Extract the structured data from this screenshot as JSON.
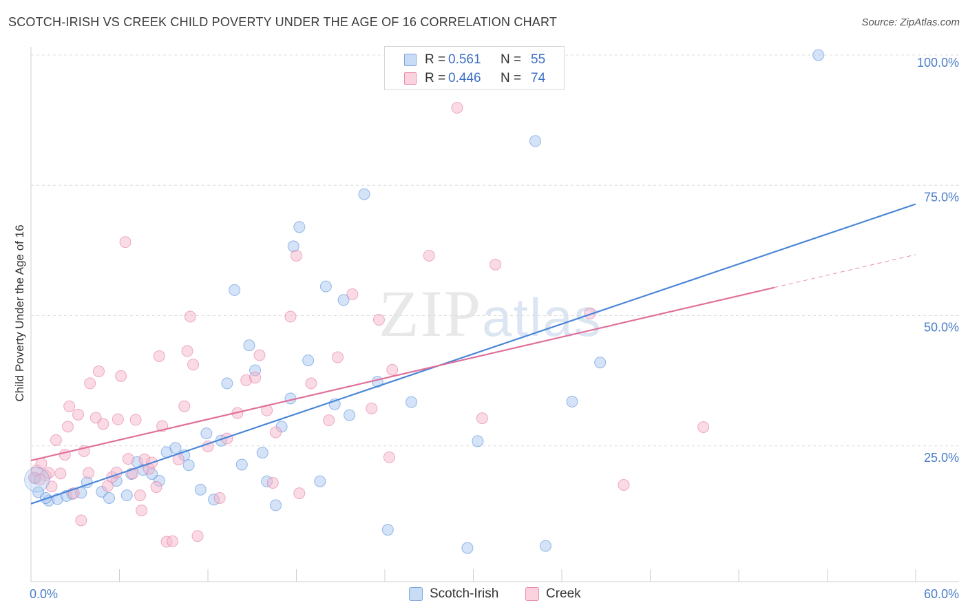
{
  "header": {
    "title": "SCOTCH-IRISH VS CREEK CHILD POVERTY UNDER THE AGE OF 16 CORRELATION CHART",
    "source": "Source: ZipAtlas.com"
  },
  "watermark": {
    "zip": "ZIP",
    "atlas": "atlas"
  },
  "legend": {
    "rows": [
      {
        "r_label": "R =",
        "r_value": "0.561",
        "n_label": "N =",
        "n_value": "55",
        "color": "#a9c8f0"
      },
      {
        "r_label": "R =",
        "r_value": "0.446",
        "n_label": "N =",
        "n_value": "74",
        "color": "#f6b8cb"
      }
    ]
  },
  "bottom_legend": [
    {
      "label": "Scotch-Irish",
      "color": "#a9c8f0"
    },
    {
      "label": "Creek",
      "color": "#f6b8cb"
    }
  ],
  "chart_data": {
    "type": "scatter",
    "title": "SCOTCH-IRISH VS CREEK CHILD POVERTY UNDER THE AGE OF 16 CORRELATION CHART",
    "ylabel": "Child Poverty Under the Age of 16",
    "xlabel": "",
    "xlim": [
      0,
      60
    ],
    "ylim": [
      0,
      100
    ],
    "x_tick_labels": [
      "0.0%",
      "60.0%"
    ],
    "y_ticks": [
      25,
      50,
      75,
      100
    ],
    "y_tick_labels": [
      "25.0%",
      "50.0%",
      "75.0%",
      "100.0%"
    ],
    "grid": true,
    "legend_position": "top-center",
    "series": [
      {
        "name": "Scotch-Irish",
        "color": "#4a86d8",
        "fill": "#a9c8f0",
        "trend": {
          "x": [
            0,
            60
          ],
          "y": [
            13.9,
            71.4
          ],
          "dashed_from": null
        },
        "points": [
          [
            0.3,
            18.8
          ],
          [
            0.5,
            16.1
          ],
          [
            1.2,
            14.5
          ],
          [
            1.8,
            14.8
          ],
          [
            2.4,
            15.4
          ],
          [
            2.8,
            15.8
          ],
          [
            3.4,
            16.0
          ],
          [
            3.8,
            18.0
          ],
          [
            4.8,
            16.2
          ],
          [
            5.3,
            15.0
          ],
          [
            5.8,
            18.3
          ],
          [
            6.5,
            15.5
          ],
          [
            6.8,
            19.6
          ],
          [
            7.2,
            21.9
          ],
          [
            7.6,
            20.4
          ],
          [
            8.2,
            19.6
          ],
          [
            8.7,
            18.3
          ],
          [
            9.2,
            23.8
          ],
          [
            9.8,
            24.6
          ],
          [
            10.4,
            23.2
          ],
          [
            10.7,
            21.3
          ],
          [
            11.5,
            16.6
          ],
          [
            11.9,
            27.4
          ],
          [
            12.4,
            14.7
          ],
          [
            12.9,
            26.0
          ],
          [
            13.3,
            37.0
          ],
          [
            13.8,
            54.9
          ],
          [
            14.3,
            21.4
          ],
          [
            14.8,
            44.3
          ],
          [
            15.2,
            39.5
          ],
          [
            15.7,
            23.7
          ],
          [
            16.0,
            18.2
          ],
          [
            16.6,
            13.6
          ],
          [
            17.0,
            28.7
          ],
          [
            17.6,
            34.1
          ],
          [
            17.8,
            63.3
          ],
          [
            18.2,
            67.0
          ],
          [
            18.8,
            41.4
          ],
          [
            19.6,
            18.2
          ],
          [
            20.0,
            55.6
          ],
          [
            20.6,
            33.0
          ],
          [
            21.2,
            53.0
          ],
          [
            21.6,
            30.9
          ],
          [
            22.6,
            73.3
          ],
          [
            23.5,
            37.3
          ],
          [
            24.2,
            8.9
          ],
          [
            25.8,
            33.4
          ],
          [
            29.6,
            5.4
          ],
          [
            30.3,
            25.9
          ],
          [
            34.2,
            83.5
          ],
          [
            34.9,
            5.8
          ],
          [
            36.7,
            33.5
          ],
          [
            38.6,
            41.0
          ],
          [
            53.4,
            100.0
          ],
          [
            1.0,
            15.0
          ]
        ]
      },
      {
        "name": "Creek",
        "color": "#e0709a",
        "fill": "#f6b8cb",
        "trend": {
          "x": [
            0,
            60
          ],
          "y": [
            22.2,
            61.7
          ],
          "dashed_from": 50.4
        },
        "points": [
          [
            0.2,
            18.9
          ],
          [
            0.4,
            20.3
          ],
          [
            0.7,
            21.6
          ],
          [
            1.0,
            19.3
          ],
          [
            1.4,
            17.2
          ],
          [
            1.7,
            26.1
          ],
          [
            2.0,
            19.7
          ],
          [
            2.3,
            23.3
          ],
          [
            2.5,
            28.7
          ],
          [
            2.6,
            32.6
          ],
          [
            2.9,
            15.9
          ],
          [
            3.2,
            31.0
          ],
          [
            3.4,
            10.7
          ],
          [
            3.6,
            24.0
          ],
          [
            3.9,
            19.8
          ],
          [
            4.0,
            37.0
          ],
          [
            4.4,
            30.4
          ],
          [
            4.6,
            39.3
          ],
          [
            4.9,
            29.2
          ],
          [
            5.2,
            17.3
          ],
          [
            5.5,
            19.0
          ],
          [
            5.8,
            19.9
          ],
          [
            5.9,
            30.1
          ],
          [
            6.1,
            38.4
          ],
          [
            6.4,
            64.1
          ],
          [
            6.6,
            22.5
          ],
          [
            6.9,
            19.7
          ],
          [
            7.1,
            30.0
          ],
          [
            7.4,
            15.5
          ],
          [
            7.5,
            12.6
          ],
          [
            7.7,
            22.4
          ],
          [
            8.0,
            20.6
          ],
          [
            8.2,
            21.8
          ],
          [
            8.5,
            17.1
          ],
          [
            8.7,
            42.2
          ],
          [
            8.9,
            28.8
          ],
          [
            9.2,
            6.6
          ],
          [
            9.6,
            6.7
          ],
          [
            10.0,
            22.4
          ],
          [
            10.4,
            32.6
          ],
          [
            10.6,
            43.2
          ],
          [
            10.8,
            49.8
          ],
          [
            11.0,
            40.6
          ],
          [
            11.3,
            7.7
          ],
          [
            12.0,
            24.9
          ],
          [
            12.8,
            15.0
          ],
          [
            13.3,
            26.4
          ],
          [
            14.0,
            31.3
          ],
          [
            14.6,
            37.6
          ],
          [
            15.2,
            38.1
          ],
          [
            15.5,
            42.4
          ],
          [
            16.0,
            31.8
          ],
          [
            16.4,
            17.9
          ],
          [
            16.6,
            27.6
          ],
          [
            17.6,
            49.8
          ],
          [
            18.0,
            61.5
          ],
          [
            18.2,
            15.9
          ],
          [
            19.0,
            37.0
          ],
          [
            20.2,
            29.9
          ],
          [
            20.8,
            42.0
          ],
          [
            21.8,
            54.1
          ],
          [
            23.1,
            32.2
          ],
          [
            23.6,
            49.2
          ],
          [
            24.3,
            22.8
          ],
          [
            24.5,
            39.6
          ],
          [
            27.0,
            61.5
          ],
          [
            28.9,
            89.9
          ],
          [
            30.6,
            30.3
          ],
          [
            31.5,
            59.8
          ],
          [
            37.9,
            50.4
          ],
          [
            40.2,
            17.5
          ],
          [
            45.6,
            28.6
          ],
          [
            0.6,
            18.5
          ],
          [
            1.2,
            19.8
          ]
        ]
      }
    ]
  }
}
